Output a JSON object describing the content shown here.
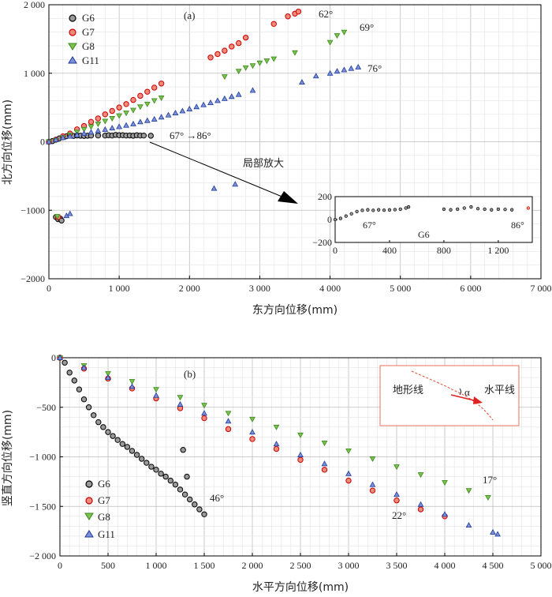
{
  "chart_data": [
    {
      "panel": "(a)",
      "type": "scatter",
      "xlabel": "东方向位移(mm)",
      "ylabel": "北方向位移(mm)",
      "xlim": [
        0,
        7000
      ],
      "ylim": [
        -2000,
        2000
      ],
      "xticks": [
        "0",
        "1 000",
        "2 000",
        "3 000",
        "4 000",
        "5 000",
        "6 000",
        "7 000"
      ],
      "yticks": [
        "2 000",
        "1 000",
        "0",
        "−1000",
        "−2000"
      ],
      "grid": true,
      "legend": "top-left",
      "series": [
        {
          "name": "G6",
          "color": "#000000",
          "fill": "#9a9a9a",
          "marker": "circle",
          "x": [
            0,
            50,
            100,
            150,
            200,
            250,
            300,
            350,
            400,
            450,
            500,
            550,
            600,
            700,
            800,
            850,
            900,
            950,
            1000,
            1050,
            1100,
            1150,
            1200,
            1250,
            1300,
            1350,
            1450,
            100,
            130,
            160,
            180
          ],
          "y": [
            0,
            10,
            30,
            50,
            70,
            80,
            90,
            85,
            90,
            88,
            85,
            88,
            90,
            90,
            90,
            95,
            90,
            100,
            95,
            95,
            90,
            92,
            88,
            95,
            90,
            90,
            88,
            -1100,
            -1130,
            -1120,
            -1150
          ]
        },
        {
          "name": "G7",
          "color": "#cc0000",
          "fill": "#f08a7a",
          "marker": "circle",
          "x": [
            0,
            100,
            200,
            300,
            400,
            500,
            600,
            700,
            800,
            900,
            1000,
            1100,
            1200,
            1300,
            1400,
            1500,
            1600,
            2300,
            2400,
            2500,
            2600,
            2700,
            2800,
            3200,
            3400,
            3500,
            3550,
            130
          ],
          "y": [
            0,
            30,
            80,
            120,
            180,
            230,
            290,
            340,
            400,
            450,
            500,
            550,
            610,
            670,
            730,
            790,
            850,
            1230,
            1280,
            1330,
            1390,
            1440,
            1520,
            1720,
            1830,
            1870,
            1900,
            -1100
          ]
        },
        {
          "name": "G8",
          "color": "#3a8a1a",
          "fill": "#7cc050",
          "marker": "triangle-down",
          "x": [
            0,
            100,
            200,
            300,
            400,
            500,
            600,
            700,
            800,
            900,
            1000,
            1100,
            1200,
            1300,
            1400,
            1500,
            1600,
            2500,
            2700,
            2800,
            2900,
            3000,
            3100,
            3200,
            3500,
            4000,
            4100,
            4200,
            120
          ],
          "y": [
            0,
            20,
            60,
            100,
            140,
            180,
            220,
            260,
            300,
            340,
            380,
            420,
            460,
            510,
            550,
            600,
            640,
            950,
            1030,
            1080,
            1110,
            1150,
            1180,
            1210,
            1300,
            1450,
            1550,
            1600,
            -1090
          ]
        },
        {
          "name": "G11",
          "color": "#1a3a9a",
          "fill": "#8090d8",
          "marker": "triangle-up",
          "x": [
            0,
            100,
            200,
            300,
            400,
            500,
            600,
            700,
            800,
            900,
            1000,
            1100,
            1200,
            1300,
            1400,
            1500,
            1600,
            1700,
            1800,
            1900,
            2000,
            2100,
            2200,
            2300,
            2400,
            2500,
            2600,
            2700,
            2350,
            2650,
            2900,
            3600,
            3800,
            4000,
            4100,
            4200,
            4300,
            4400,
            300,
            250
          ],
          "y": [
            0,
            30,
            60,
            80,
            100,
            120,
            140,
            160,
            180,
            200,
            220,
            240,
            260,
            290,
            310,
            330,
            360,
            390,
            420,
            450,
            480,
            510,
            540,
            570,
            600,
            630,
            660,
            690,
            -680,
            -620,
            750,
            870,
            960,
            1000,
            1030,
            1050,
            1070,
            1090,
            -1050,
            -1080
          ]
        }
      ],
      "annotations": [
        "62°",
        "69°",
        "76°",
        "67°  →86°",
        "局部放大"
      ],
      "inset": {
        "series": "G6",
        "xlim": [
          0,
          1450
        ],
        "ylim": [
          -200,
          200
        ],
        "xticks": [
          "0",
          "400",
          "800",
          "1 200"
        ],
        "yticks": [
          "200",
          "0",
          "−200"
        ],
        "x": [
          0,
          40,
          80,
          120,
          160,
          200,
          240,
          280,
          320,
          360,
          400,
          440,
          480,
          520,
          540,
          800,
          850,
          900,
          950,
          1000,
          1050,
          1100,
          1150,
          1200,
          1250,
          1300,
          1420
        ],
        "y": [
          0,
          10,
          30,
          50,
          70,
          80,
          85,
          80,
          85,
          82,
          84,
          86,
          90,
          100,
          110,
          90,
          85,
          90,
          100,
          110,
          95,
          90,
          85,
          90,
          88,
          85,
          100
        ],
        "labels": [
          "67°",
          "G6",
          "86°"
        ]
      }
    },
    {
      "panel": "(b)",
      "type": "scatter",
      "xlabel": "水平方向位移(mm)",
      "ylabel": "竖直方向位移(mm)",
      "xlim": [
        0,
        5000
      ],
      "ylim": [
        -2000,
        0
      ],
      "xticks": [
        "0",
        "500",
        "1 000",
        "1 500",
        "2 000",
        "2 500",
        "3 000",
        "3 500",
        "4 000",
        "4 500",
        "5 000"
      ],
      "yticks": [
        "0",
        "−500",
        "−1 000",
        "−1 500",
        "−2 000"
      ],
      "grid": true,
      "legend": "bottom-left",
      "series": [
        {
          "name": "G6",
          "color": "#000000",
          "fill": "#9a9a9a",
          "marker": "circle",
          "x": [
            0,
            50,
            100,
            150,
            200,
            250,
            300,
            350,
            400,
            450,
            500,
            550,
            600,
            650,
            700,
            750,
            800,
            850,
            900,
            950,
            1000,
            1050,
            1100,
            1150,
            1200,
            1250,
            1300,
            1350,
            1400,
            1450,
            1500,
            1280,
            1320
          ],
          "y": [
            0,
            -50,
            -150,
            -230,
            -320,
            -420,
            -500,
            -580,
            -650,
            -700,
            -750,
            -790,
            -830,
            -870,
            -900,
            -940,
            -980,
            -1020,
            -1060,
            -1100,
            -1130,
            -1170,
            -1200,
            -1240,
            -1280,
            -1330,
            -1380,
            -1430,
            -1480,
            -1530,
            -1580,
            -930,
            -1200
          ]
        },
        {
          "name": "G7",
          "color": "#cc0000",
          "fill": "#f08a7a",
          "marker": "circle",
          "x": [
            0,
            250,
            500,
            750,
            1000,
            1250,
            1500,
            1750,
            2000,
            2250,
            2500,
            2750,
            3000,
            3250,
            3500,
            3750,
            4000
          ],
          "y": [
            0,
            -110,
            -210,
            -310,
            -410,
            -510,
            -610,
            -720,
            -820,
            -920,
            -1030,
            -1130,
            -1240,
            -1340,
            -1440,
            -1530,
            -1600
          ]
        },
        {
          "name": "G8",
          "color": "#3a8a1a",
          "fill": "#7cc050",
          "marker": "triangle-down",
          "x": [
            0,
            250,
            500,
            750,
            1000,
            1250,
            1500,
            1750,
            2000,
            2250,
            2500,
            2750,
            3000,
            3250,
            3500,
            3750,
            4000,
            4250,
            4450
          ],
          "y": [
            0,
            -80,
            -160,
            -240,
            -320,
            -400,
            -480,
            -560,
            -620,
            -700,
            -780,
            -860,
            -940,
            -1020,
            -1100,
            -1180,
            -1260,
            -1340,
            -1410
          ]
        },
        {
          "name": "G11",
          "color": "#1a3a9a",
          "fill": "#8090d8",
          "marker": "triangle-up",
          "x": [
            0,
            250,
            500,
            750,
            1000,
            1250,
            1500,
            1750,
            2000,
            2250,
            2500,
            2750,
            3000,
            3250,
            3500,
            3750,
            4000,
            4250,
            4500,
            4550
          ],
          "y": [
            0,
            -100,
            -200,
            -290,
            -380,
            -470,
            -560,
            -640,
            -750,
            -870,
            -980,
            -1070,
            -1170,
            -1280,
            -1380,
            -1480,
            -1580,
            -1690,
            -1760,
            -1780
          ]
        }
      ],
      "annotations": [
        "46°",
        "22°",
        "17°"
      ],
      "inset": {
        "labels": [
          "地形线",
          "α",
          "水平线"
        ]
      }
    }
  ]
}
